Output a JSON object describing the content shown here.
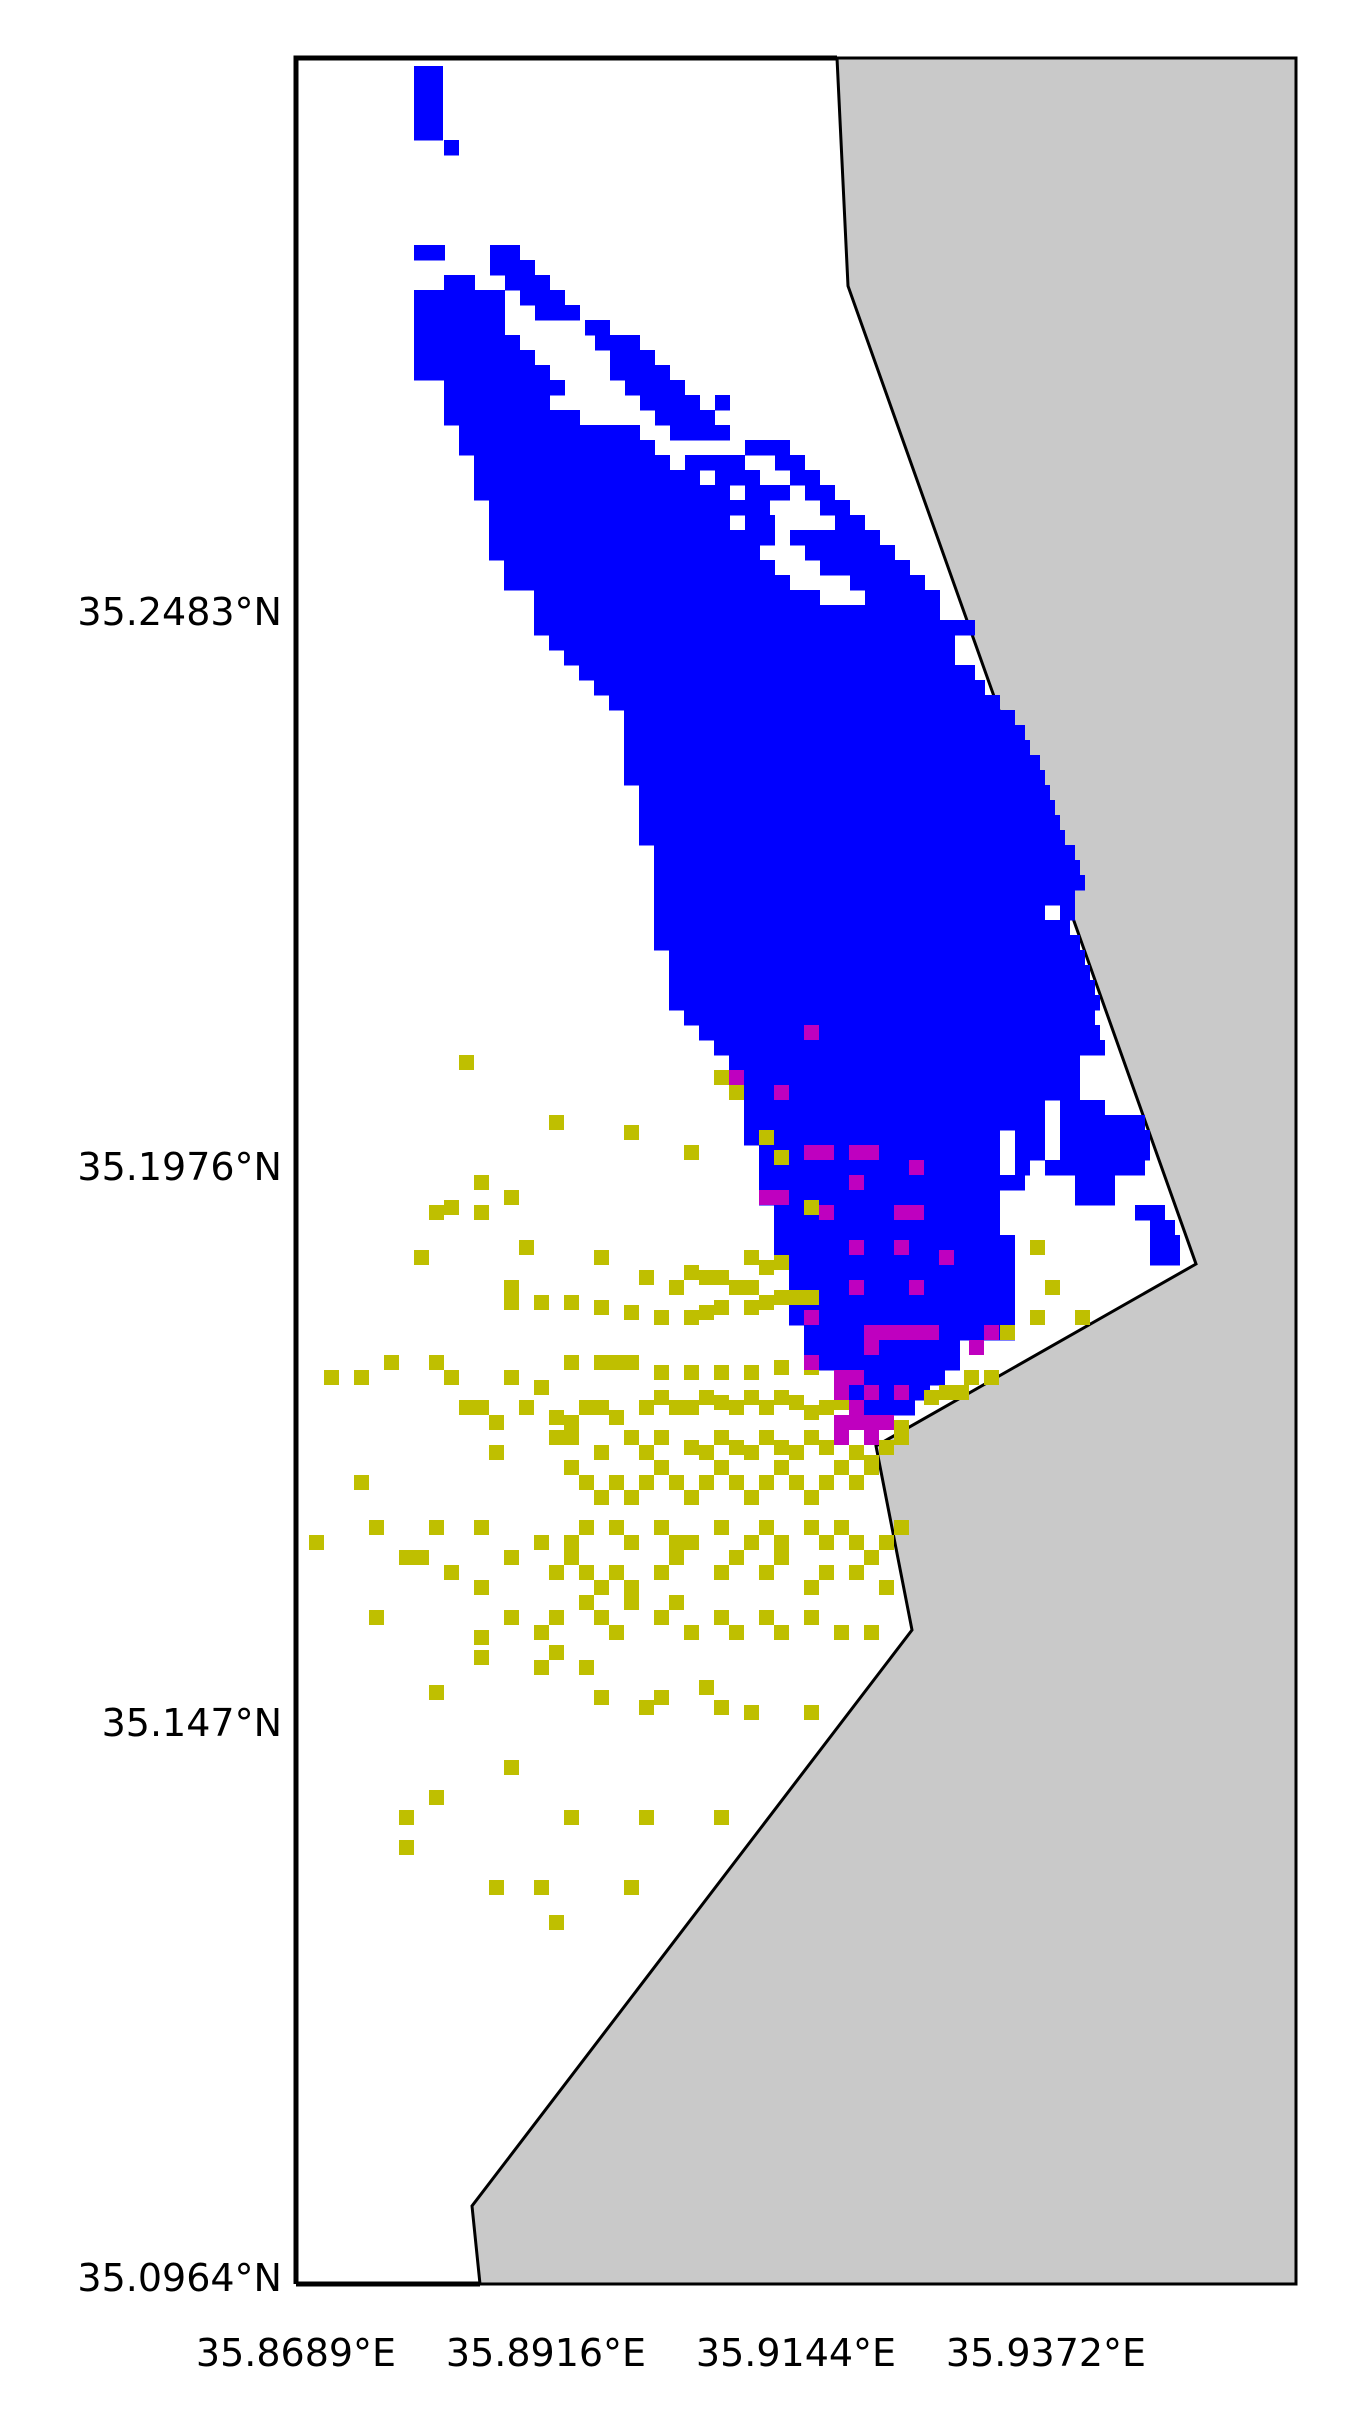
{
  "map": {
    "y_ticks": [
      "35.2483°N",
      "35.1976°N",
      "35.147°N",
      "35.0964°N"
    ],
    "x_ticks": [
      "35.8689°E",
      "35.8916°E",
      "35.9144°E",
      "35.9372°E"
    ],
    "colors": {
      "land": "#c9c9c9",
      "water": "#ffffff",
      "blue_cells": "#0000ff",
      "yellow_cells": "#bfbf00",
      "magenta_cells": "#bf00bf",
      "coastline": "#000000"
    }
  }
}
